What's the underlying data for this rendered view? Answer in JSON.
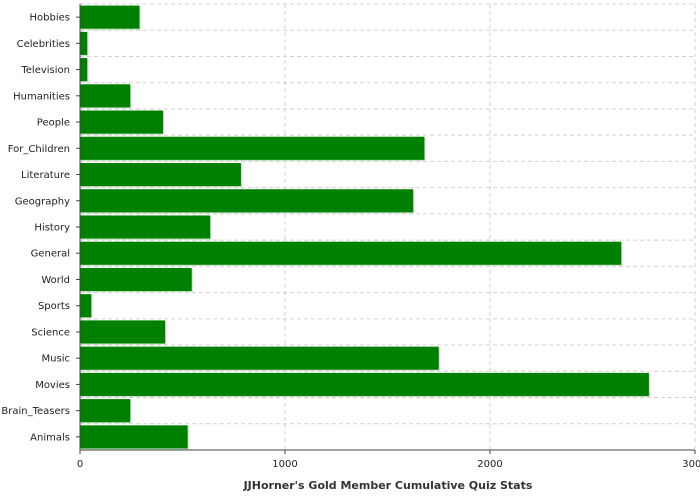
{
  "chart_data": {
    "type": "bar",
    "orientation": "horizontal",
    "categories": [
      "Hobbies",
      "Celebrities",
      "Television",
      "Humanities",
      "People",
      "For_Children",
      "Literature",
      "Geography",
      "History",
      "General",
      "World",
      "Sports",
      "Science",
      "Music",
      "Movies",
      "Brain_Teasers",
      "Animals"
    ],
    "values": [
      290,
      35,
      35,
      245,
      405,
      1680,
      785,
      1625,
      635,
      2640,
      545,
      55,
      415,
      1750,
      2775,
      245,
      525
    ],
    "title": "",
    "xlabel": "JJHorner's Gold Member Cumulative Quiz Stats",
    "ylabel": "",
    "xlim": [
      0,
      3000
    ],
    "xticks": [
      "0",
      "1000",
      "2000",
      "3000"
    ],
    "grid": true,
    "legend": "none",
    "bar_color": "#008000",
    "grid_color": "#d0d0d0"
  }
}
